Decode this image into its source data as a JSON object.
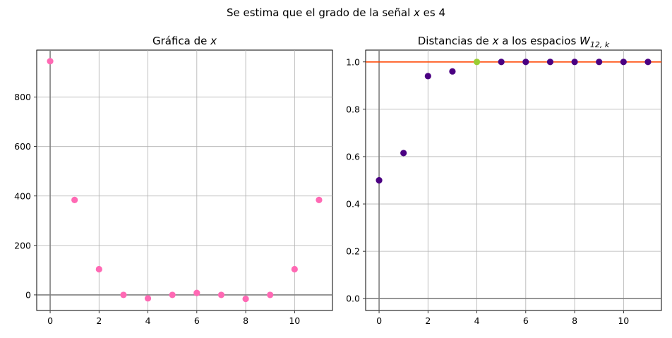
{
  "figure": {
    "title_prefix": "Se estima que el grado de la señal ",
    "title_var": "x",
    "title_suffix": " es 4"
  },
  "colors": {
    "pink_points": "#ff69b4",
    "purple_points": "#4b0082",
    "highlight_point": "#9acd32",
    "reference_line": "#ff4500",
    "axis_lines": "#808080",
    "grid": "#b0b0b0"
  },
  "chart_data": [
    {
      "type": "scatter",
      "title_prefix": "Gráfica de ",
      "title_var": "x",
      "x": [
        0,
        1,
        2,
        3,
        4,
        5,
        6,
        7,
        8,
        9,
        10,
        11
      ],
      "y": [
        945,
        384,
        104,
        0,
        -14,
        0,
        8,
        0,
        -16,
        0,
        104,
        384
      ],
      "xlim": [
        -0.55,
        11.55
      ],
      "ylim": [
        -63,
        990
      ],
      "xticks": [
        0,
        2,
        4,
        6,
        8,
        10
      ],
      "yticks": [
        0,
        200,
        400,
        600,
        800
      ],
      "xtick_labels": [
        "0",
        "2",
        "4",
        "6",
        "8",
        "10"
      ],
      "ytick_labels": [
        "0",
        "200",
        "400",
        "600",
        "800"
      ],
      "grid": true,
      "marker_color": "#ff69b4"
    },
    {
      "type": "scatter",
      "title_prefix": "Distancias de ",
      "title_var": "x",
      "title_mid": " a los espacios ",
      "title_sym": "W",
      "title_sub": "12, k",
      "x": [
        0,
        1,
        2,
        3,
        4,
        5,
        6,
        7,
        8,
        9,
        10,
        11
      ],
      "y": [
        0.5,
        0.615,
        0.94,
        0.96,
        1.0,
        1.0,
        1.0,
        1.0,
        1.0,
        1.0,
        1.0,
        1.0
      ],
      "highlight_index": 4,
      "hline": 1.0,
      "xlim": [
        -0.55,
        11.55
      ],
      "ylim": [
        -0.05,
        1.05
      ],
      "xticks": [
        0,
        2,
        4,
        6,
        8,
        10
      ],
      "yticks": [
        0.0,
        0.2,
        0.4,
        0.6,
        0.8,
        1.0
      ],
      "xtick_labels": [
        "0",
        "2",
        "4",
        "6",
        "8",
        "10"
      ],
      "ytick_labels": [
        "0.0",
        "0.2",
        "0.4",
        "0.6",
        "0.8",
        "1.0"
      ],
      "grid": true,
      "marker_color": "#4b0082",
      "highlight_color": "#9acd32"
    }
  ]
}
